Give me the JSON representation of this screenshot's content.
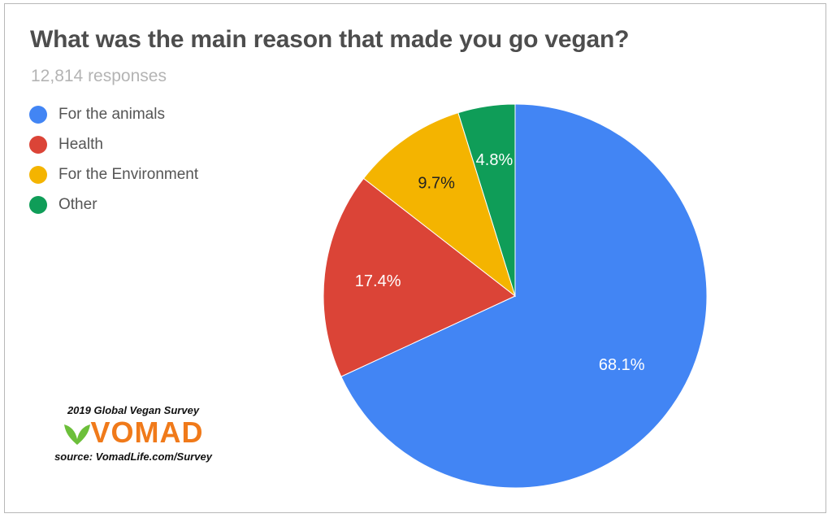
{
  "chart_data": {
    "type": "pie",
    "title": "What was the main reason that made you go vegan?",
    "subtitle": "12,814 responses",
    "legend_position": "top-left",
    "slices": [
      {
        "label": "For the animals",
        "value": 68.1,
        "display": "68.1%",
        "color": "#4285f4",
        "text_color": "#ffffff"
      },
      {
        "label": "Health",
        "value": 17.4,
        "display": "17.4%",
        "color": "#db4437",
        "text_color": "#ffffff"
      },
      {
        "label": "For the Environment",
        "value": 9.7,
        "display": "9.7%",
        "color": "#f4b400",
        "text_color": "#222222"
      },
      {
        "label": "Other",
        "value": 4.8,
        "display": "4.8%",
        "color": "#0f9d58",
        "text_color": "#ffffff"
      }
    ]
  },
  "branding": {
    "survey": "2019 Global Vegan Survey",
    "logo": "VOMAD",
    "logo_color": "#f07a1a",
    "leaf_color": "#6cbf3a",
    "source": "source: VomadLife.com/Survey"
  }
}
